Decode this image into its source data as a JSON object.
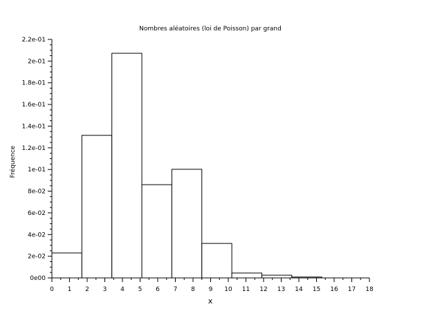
{
  "chart_data": {
    "type": "bar",
    "title": "Nombres aléatoires (loi de Poisson) par grand",
    "xlabel": "x",
    "ylabel": "Fréquence",
    "xlim": [
      0,
      18
    ],
    "ylim": [
      0,
      0.22
    ],
    "x_ticks": [
      "0",
      "1",
      "2",
      "3",
      "4",
      "5",
      "6",
      "7",
      "8",
      "9",
      "10",
      "11",
      "12",
      "13",
      "14",
      "15",
      "16",
      "17",
      "18"
    ],
    "y_ticks": [
      "0e00",
      "2e-02",
      "4e-02",
      "6e-02",
      "8e-02",
      "1e-01",
      "1.2e-01",
      "1.4e-01",
      "1.6e-01",
      "1.8e-01",
      "2e-01",
      "2.2e-01"
    ],
    "bins": [
      {
        "x0": 0,
        "x1": 1.7,
        "value": 0.023
      },
      {
        "x0": 1.7,
        "x1": 3.4,
        "value": 0.1315
      },
      {
        "x0": 3.4,
        "x1": 5.1,
        "value": 0.2072
      },
      {
        "x0": 5.1,
        "x1": 6.8,
        "value": 0.086
      },
      {
        "x0": 6.8,
        "x1": 8.5,
        "value": 0.1002
      },
      {
        "x0": 8.5,
        "x1": 10.2,
        "value": 0.0318
      },
      {
        "x0": 10.2,
        "x1": 11.9,
        "value": 0.0045
      },
      {
        "x0": 11.9,
        "x1": 13.6,
        "value": 0.0025
      },
      {
        "x0": 13.6,
        "x1": 15.3,
        "value": 0.0008
      }
    ],
    "grid": false,
    "bar_fill": "#ffffff",
    "bar_stroke": "#000000"
  }
}
